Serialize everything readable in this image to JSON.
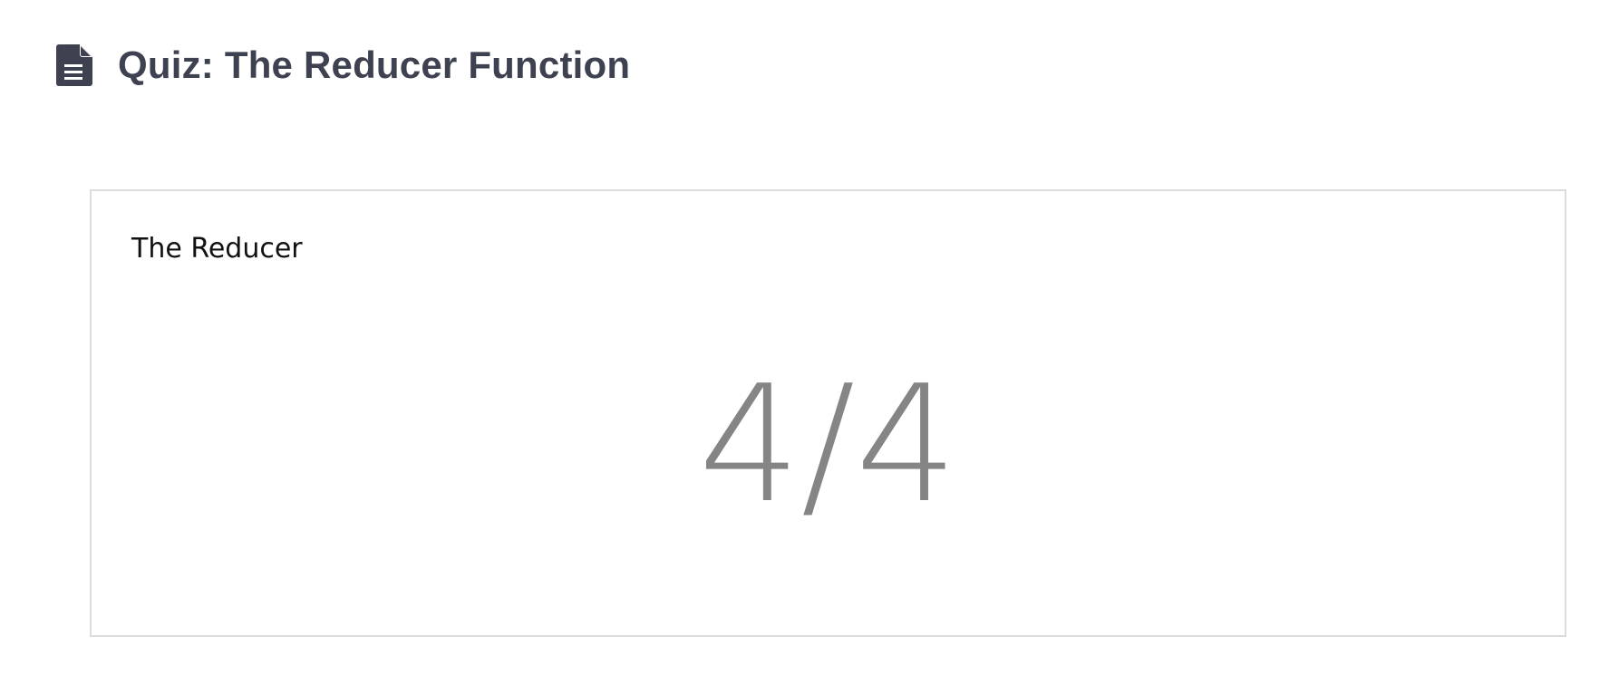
{
  "header": {
    "title": "Quiz: The Reducer Function",
    "icon": "document-icon"
  },
  "card": {
    "label": "The Reducer",
    "score": "4/4"
  },
  "colors": {
    "title": "#3d4150",
    "icon": "#3d4150",
    "score": "#858585",
    "card_border": "#dcdcdc"
  }
}
